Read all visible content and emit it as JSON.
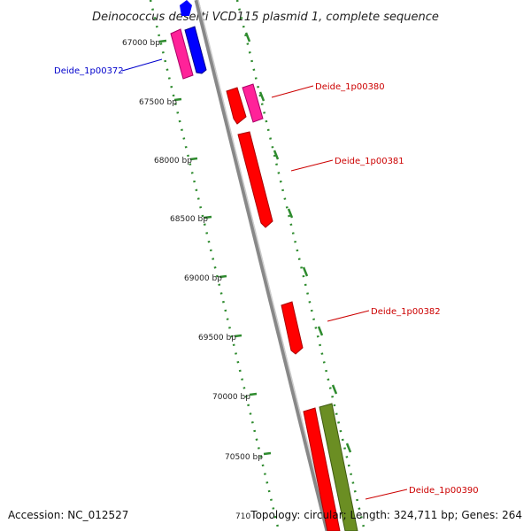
{
  "title": "Deinococcus deserti VCD115 plasmid 1, complete sequence",
  "footer": {
    "accession": "Accession: NC_012527",
    "summary": "Topology: circular; Length: 324,711 bp; Genes: 264"
  },
  "ticks": [
    "67000 bp",
    "67500 bp",
    "68000 bp",
    "68500 bp",
    "69000 bp",
    "69500 bp",
    "70000 bp",
    "70500 bp",
    "710"
  ],
  "genes": {
    "g372": "Deide_1p00372",
    "g380": "Deide_1p00380",
    "g381": "Deide_1p00381",
    "g382": "Deide_1p00382",
    "g390": "Deide_1p00390"
  },
  "colors": {
    "backbone": "#888888",
    "tick_dash": "#2e8b2e",
    "red_gene": "#ff0000",
    "pink_gene": "#ff2299",
    "blue_gene": "#0000ff",
    "olive_gene": "#6b8e23",
    "label_red": "#cc0000",
    "label_blue": "#0000cc"
  }
}
